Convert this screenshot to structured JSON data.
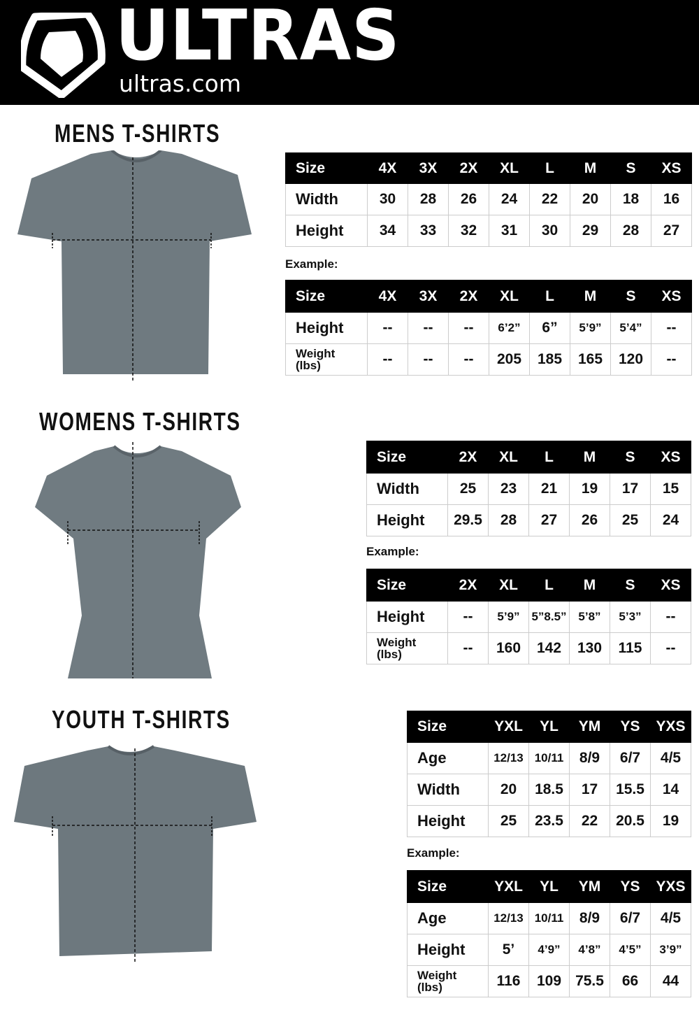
{
  "brand": {
    "name": "ULTRAS",
    "url": "ultras.com"
  },
  "example_label": "Example:",
  "sections": [
    {
      "title": "MENS T-SHIRTS",
      "measure": {
        "header": [
          "Size",
          "4X",
          "3X",
          "2X",
          "XL",
          "L",
          "M",
          "S",
          "XS"
        ],
        "rows": [
          [
            "Width",
            "30",
            "28",
            "26",
            "24",
            "22",
            "20",
            "18",
            "16"
          ],
          [
            "Height",
            "34",
            "33",
            "32",
            "31",
            "30",
            "29",
            "28",
            "27"
          ]
        ]
      },
      "example": {
        "header": [
          "Size",
          "4X",
          "3X",
          "2X",
          "XL",
          "L",
          "M",
          "S",
          "XS"
        ],
        "rows": [
          [
            "Height",
            "--",
            "--",
            "--",
            "6’2”",
            "6”",
            "5’9”",
            "5’4”",
            "--"
          ],
          [
            "Weight\n(lbs)",
            "--",
            "--",
            "--",
            "205",
            "185",
            "165",
            "120",
            "--"
          ]
        ]
      }
    },
    {
      "title": "WOMENS T-SHIRTS",
      "measure": {
        "header": [
          "Size",
          "2X",
          "XL",
          "L",
          "M",
          "S",
          "XS"
        ],
        "rows": [
          [
            "Width",
            "25",
            "23",
            "21",
            "19",
            "17",
            "15"
          ],
          [
            "Height",
            "29.5",
            "28",
            "27",
            "26",
            "25",
            "24"
          ]
        ]
      },
      "example": {
        "header": [
          "Size",
          "2X",
          "XL",
          "L",
          "M",
          "S",
          "XS"
        ],
        "rows": [
          [
            "Height",
            "--",
            "5’9”",
            "5”8.5”",
            "5’8”",
            "5’3”",
            "--"
          ],
          [
            "Weight\n(lbs)",
            "--",
            "160",
            "142",
            "130",
            "115",
            "--"
          ]
        ]
      }
    },
    {
      "title": "YOUTH T-SHIRTS",
      "measure": {
        "header": [
          "Size",
          "YXL",
          "YL",
          "YM",
          "YS",
          "YXS"
        ],
        "rows": [
          [
            "Age",
            "12/13",
            "10/11",
            "8/9",
            "6/7",
            "4/5"
          ],
          [
            "Width",
            "20",
            "18.5",
            "17",
            "15.5",
            "14"
          ],
          [
            "Height",
            "25",
            "23.5",
            "22",
            "20.5",
            "19"
          ]
        ]
      },
      "example": {
        "header": [
          "Size",
          "YXL",
          "YL",
          "YM",
          "YS",
          "YXS"
        ],
        "rows": [
          [
            "Age",
            "12/13",
            "10/11",
            "8/9",
            "6/7",
            "4/5"
          ],
          [
            "Height",
            "5’",
            "4’9”",
            "4’8”",
            "4’5”",
            "3’9”"
          ],
          [
            "Weight\n(lbs)",
            "116",
            "109",
            "75.5",
            "66",
            "44"
          ]
        ]
      }
    }
  ],
  "colors": {
    "banner": "#000000",
    "shirt": "#6f7a80"
  }
}
